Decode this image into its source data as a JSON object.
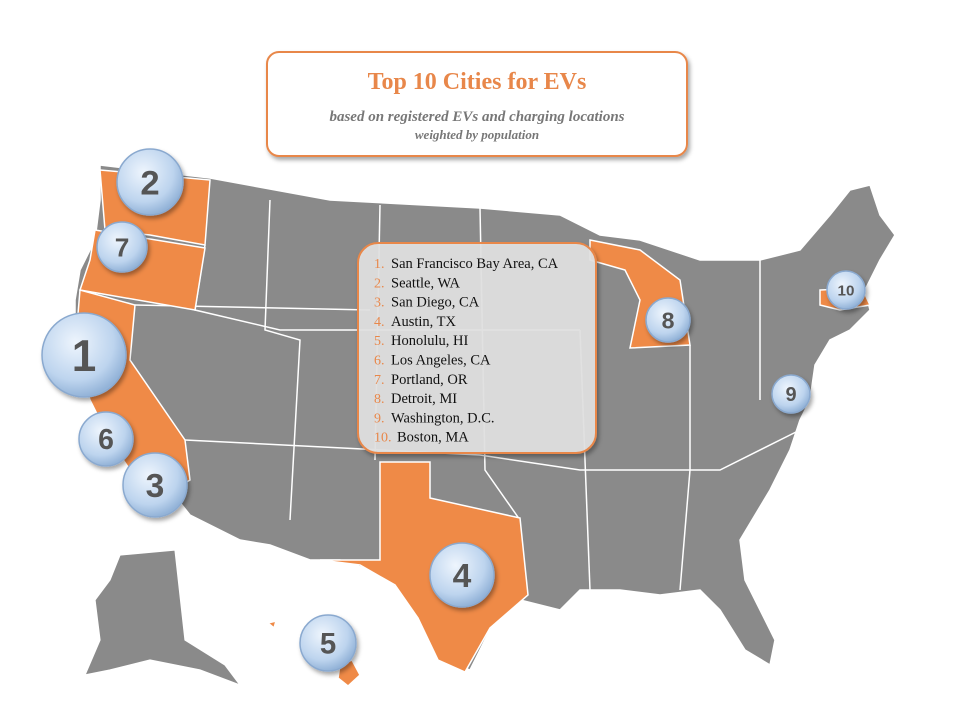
{
  "header": {
    "title": "Top 10 Cities for EVs",
    "subtitle": "based on registered EVs and charging locations",
    "note": "weighted by population"
  },
  "list": [
    {
      "rank": "1.",
      "city": "San Francisco Bay Area, CA"
    },
    {
      "rank": "2.",
      "city": "Seattle, WA"
    },
    {
      "rank": "3.",
      "city": "San Diego, CA"
    },
    {
      "rank": "4.",
      "city": "Austin, TX"
    },
    {
      "rank": "5.",
      "city": "Honolulu, HI"
    },
    {
      "rank": "6.",
      "city": "Los Angeles, CA"
    },
    {
      "rank": "7.",
      "city": "Portland, OR"
    },
    {
      "rank": "8.",
      "city": "Detroit, MI"
    },
    {
      "rank": "9.",
      "city": "Washington, D.C."
    },
    {
      "rank": "10.",
      "city": "Boston, MA"
    }
  ],
  "markers": [
    "1",
    "2",
    "3",
    "4",
    "5",
    "6",
    "7",
    "8",
    "9",
    "10"
  ]
}
